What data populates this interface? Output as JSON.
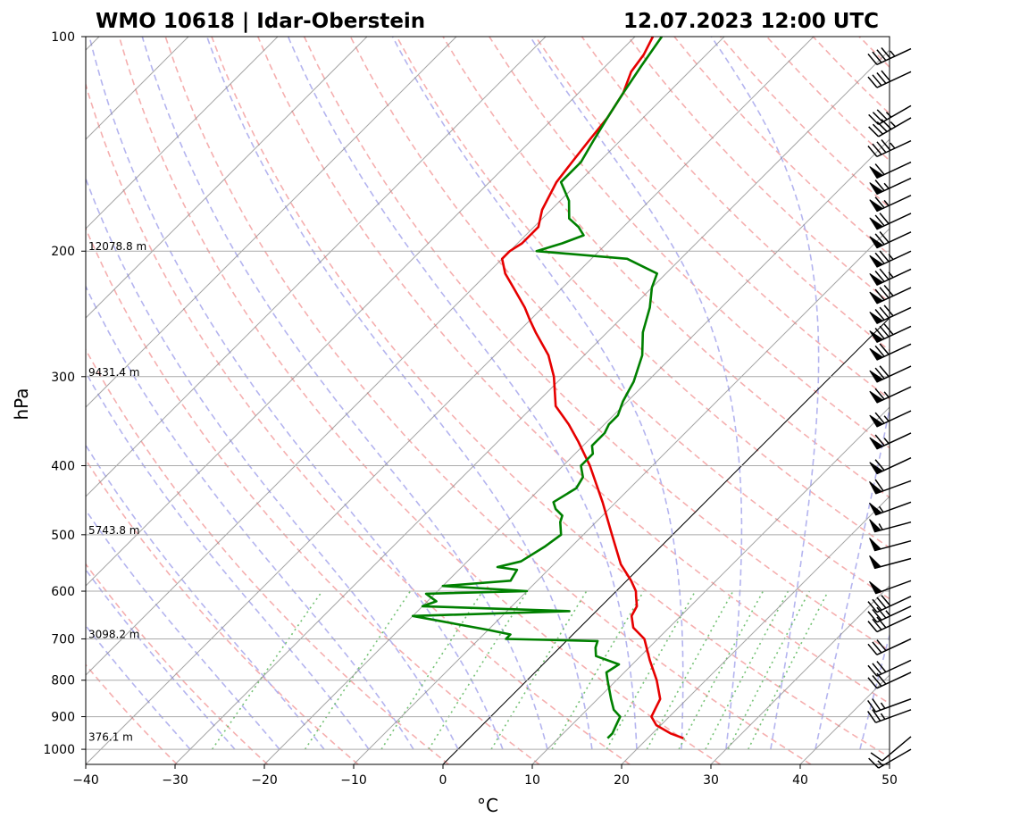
{
  "header": {
    "station": "WMO 10618 | Idar-Oberstein",
    "datetime": "12.07.2023 12:00 UTC"
  },
  "chart_data": {
    "type": "line",
    "title": "WMO 10618 | Idar-Oberstein",
    "xlabel": "°C",
    "ylabel": "hPa",
    "xlim": [
      -40,
      50
    ],
    "ylim": [
      1050,
      100
    ],
    "y_scale": "log",
    "skew": "45°",
    "grid": true,
    "x_ticks": [
      -40,
      -30,
      -20,
      -10,
      0,
      10,
      20,
      30,
      40,
      50
    ],
    "x_tick_labels": [
      "−40",
      "−30",
      "−20",
      "−10",
      "0",
      "10",
      "20",
      "30",
      "40",
      "50"
    ],
    "y_ticks": [
      100,
      200,
      300,
      400,
      500,
      600,
      700,
      800,
      900,
      1000
    ],
    "height_labels": [
      {
        "p": 200,
        "text": "12078.8 m"
      },
      {
        "p": 300,
        "text": "9431.4 m"
      },
      {
        "p": 500,
        "text": "5743.8 m"
      },
      {
        "p": 700,
        "text": "3098.2 m"
      },
      {
        "p": 975,
        "text": "376.1 m"
      }
    ],
    "colors": {
      "temperature": "#e60000",
      "dewpoint": "#008000",
      "dry_adiabats": "#f4a6a6",
      "moist_adiabats": "#b0b0ee",
      "mixing_ratio": "#66bb66",
      "isotherms": "#888888",
      "zero_isotherm": "#000000"
    },
    "series": [
      {
        "role": "temperature",
        "p": [
          965,
          950,
          925,
          900,
          875,
          850,
          800,
          750,
          700,
          675,
          650,
          630,
          610,
          600,
          580,
          550,
          500,
          450,
          400,
          370,
          350,
          330,
          300,
          280,
          260,
          250,
          240,
          225,
          215,
          205,
          200,
          195,
          185,
          175,
          160,
          150,
          140,
          130,
          120,
          112,
          106,
          100
        ],
        "t": [
          24.0,
          22.0,
          19.5,
          18.0,
          17.5,
          17.0,
          14.5,
          11.5,
          8.5,
          6.0,
          4.5,
          4.0,
          2.8,
          2.2,
          0.5,
          -2.5,
          -6.8,
          -11.5,
          -17.0,
          -21.0,
          -24.0,
          -27.5,
          -31.0,
          -34.0,
          -38.0,
          -40.0,
          -42.0,
          -45.5,
          -48.0,
          -50.0,
          -50.0,
          -49.5,
          -49.5,
          -51.0,
          -52.5,
          -53.0,
          -53.5,
          -54.0,
          -55.0,
          -56.5,
          -57.0,
          -58.0
        ]
      },
      {
        "role": "dewpoint",
        "p": [
          965,
          950,
          925,
          900,
          880,
          850,
          800,
          780,
          760,
          740,
          720,
          705,
          700,
          690,
          680,
          650,
          640,
          630,
          620,
          605,
          600,
          590,
          580,
          560,
          555,
          545,
          520,
          500,
          480,
          470,
          460,
          450,
          430,
          415,
          405,
          400,
          385,
          375,
          360,
          350,
          340,
          325,
          315,
          305,
          280,
          260,
          240,
          225,
          215,
          205,
          200,
          195,
          190,
          185,
          180,
          170,
          160,
          150,
          140,
          130,
          120,
          110,
          100
        ],
        "td": [
          15.5,
          15.5,
          15.0,
          14.5,
          13.0,
          11.5,
          9.0,
          8.0,
          8.5,
          5.0,
          4.0,
          3.5,
          -7.0,
          -7.0,
          -10.0,
          -20.0,
          -3.0,
          -20.0,
          -19.0,
          -21.0,
          -10.0,
          -20.0,
          -13.0,
          -13.5,
          -16.0,
          -14.0,
          -13.0,
          -12.5,
          -14.0,
          -14.5,
          -16.0,
          -17.0,
          -16.0,
          -16.5,
          -17.5,
          -18.0,
          -18.0,
          -19.0,
          -19.0,
          -19.5,
          -19.5,
          -20.5,
          -21.0,
          -21.5,
          -23.5,
          -26.0,
          -28.0,
          -30.0,
          -31.0,
          -36.0,
          -47.0,
          -45.0,
          -43.5,
          -45.0,
          -47.0,
          -49.0,
          -52.0,
          -52.0,
          -53.0,
          -54.0,
          -55.0,
          -56.0,
          -57.0
        ]
      }
    ],
    "wind_barbs": [
      {
        "p": 1000,
        "dir": 240,
        "speed": 15
      },
      {
        "p": 960,
        "dir": 230,
        "speed": 10
      },
      {
        "p": 880,
        "dir": 250,
        "speed": 25
      },
      {
        "p": 850,
        "dir": 250,
        "speed": 25
      },
      {
        "p": 780,
        "dir": 245,
        "speed": 30
      },
      {
        "p": 750,
        "dir": 245,
        "speed": 30
      },
      {
        "p": 700,
        "dir": 245,
        "speed": 30
      },
      {
        "p": 650,
        "dir": 245,
        "speed": 30
      },
      {
        "p": 630,
        "dir": 245,
        "speed": 35
      },
      {
        "p": 610,
        "dir": 245,
        "speed": 40
      },
      {
        "p": 580,
        "dir": 250,
        "speed": 50
      },
      {
        "p": 540,
        "dir": 255,
        "speed": 50
      },
      {
        "p": 510,
        "dir": 255,
        "speed": 50
      },
      {
        "p": 480,
        "dir": 255,
        "speed": 55
      },
      {
        "p": 450,
        "dir": 250,
        "speed": 55
      },
      {
        "p": 420,
        "dir": 250,
        "speed": 60
      },
      {
        "p": 390,
        "dir": 245,
        "speed": 60
      },
      {
        "p": 360,
        "dir": 245,
        "speed": 65
      },
      {
        "p": 335,
        "dir": 245,
        "speed": 65
      },
      {
        "p": 310,
        "dir": 245,
        "speed": 65
      },
      {
        "p": 290,
        "dir": 245,
        "speed": 70
      },
      {
        "p": 270,
        "dir": 245,
        "speed": 70
      },
      {
        "p": 255,
        "dir": 245,
        "speed": 80
      },
      {
        "p": 240,
        "dir": 245,
        "speed": 80
      },
      {
        "p": 225,
        "dir": 245,
        "speed": 80
      },
      {
        "p": 212,
        "dir": 245,
        "speed": 75
      },
      {
        "p": 200,
        "dir": 245,
        "speed": 75
      },
      {
        "p": 188,
        "dir": 245,
        "speed": 70
      },
      {
        "p": 177,
        "dir": 245,
        "speed": 70
      },
      {
        "p": 167,
        "dir": 245,
        "speed": 65
      },
      {
        "p": 158,
        "dir": 245,
        "speed": 65
      },
      {
        "p": 150,
        "dir": 245,
        "speed": 60
      },
      {
        "p": 140,
        "dir": 245,
        "speed": 45
      },
      {
        "p": 130,
        "dir": 240,
        "speed": 45
      },
      {
        "p": 125,
        "dir": 240,
        "speed": 35
      },
      {
        "p": 112,
        "dir": 245,
        "speed": 40
      },
      {
        "p": 104,
        "dir": 245,
        "speed": 45
      }
    ]
  }
}
